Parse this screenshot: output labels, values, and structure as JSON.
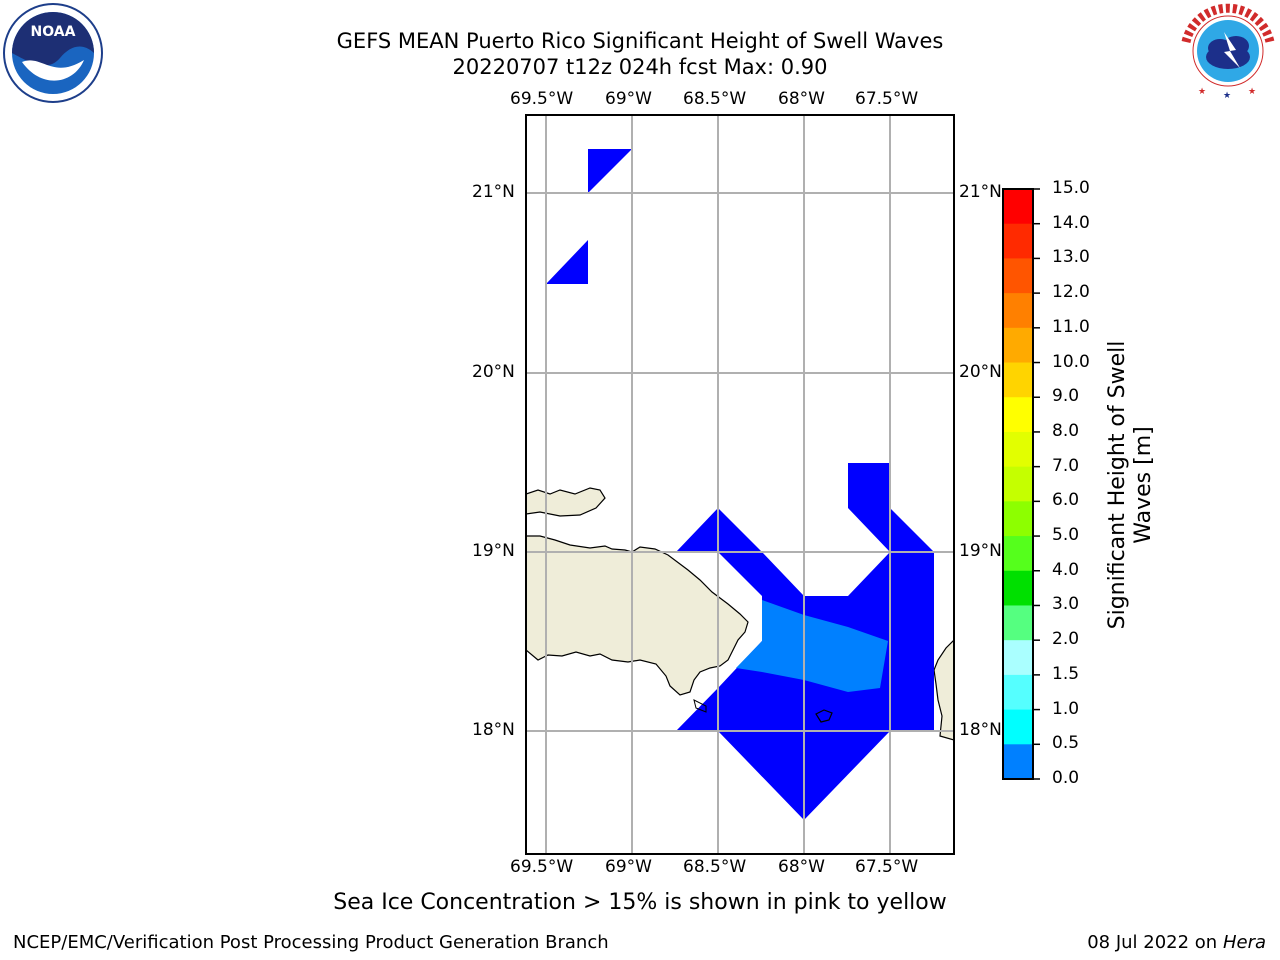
{
  "header": {
    "title_line1": "GEFS MEAN Puerto Rico Significant Height of Swell Waves",
    "title_line2": "20220707 t12z 024h fcst   Max: 0.90"
  },
  "logos": {
    "left_name": "NOAA",
    "left_ring_text": "NATIONAL OCEANIC AND ATMOSPHERIC ADMINISTRATION · U.S. DEPARTMENT OF COMMERCE",
    "right_ring_text": "NATIONAL WEATHER SERVICE"
  },
  "map": {
    "lon_labels": [
      "69.5°W",
      "69°W",
      "68.5°W",
      "68°W",
      "67.5°W"
    ],
    "lat_labels": [
      "21°N",
      "20°N",
      "19°N",
      "18°N"
    ],
    "lon_range": [
      -69.62,
      -67.15
    ],
    "lat_range": [
      17.35,
      21.45
    ],
    "colors": {
      "land": "#efedd9",
      "grid": "#b0b0b0",
      "wave_low": "#0000ff",
      "wave_mid": "#0080ff"
    }
  },
  "colorbar": {
    "label": "Significant Height of Swell Waves [m]",
    "ticks": [
      "15.0",
      "14.0",
      "13.0",
      "12.0",
      "11.0",
      "10.0",
      "9.0",
      "8.0",
      "7.0",
      "6.0",
      "5.0",
      "4.0",
      "3.0",
      "2.0",
      "1.5",
      "1.0",
      "0.5",
      "0.0"
    ],
    "colors": [
      "#ff0000",
      "#ff2a00",
      "#ff5500",
      "#ff8000",
      "#ffaa00",
      "#ffd400",
      "#ffff00",
      "#e2ff00",
      "#c5ff00",
      "#8dff00",
      "#55ff1c",
      "#00e000",
      "#55ff80",
      "#aaffff",
      "#55ffff",
      "#00ffff",
      "#0080ff",
      "#0000ff"
    ]
  },
  "caption": "Sea Ice Concentration > 15% is shown in pink to yellow",
  "footer": {
    "left": "NCEP/EMC/Verification Post Processing Product Generation Branch",
    "right_prefix": "08 Jul 2022 on ",
    "right_machine": "Hera"
  }
}
